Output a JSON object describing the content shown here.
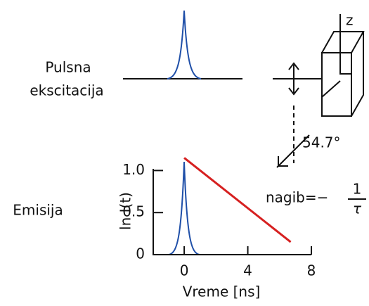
{
  "excitation": {
    "label_lines": [
      "Pulsna",
      "ekscitacija"
    ]
  },
  "emission": {
    "label": "Emisija"
  },
  "polarizer": {
    "axis_label": "z",
    "angle_label": "54.7°"
  },
  "decay_plot": {
    "ylabel": "ln I(t)",
    "xlabel": "Vreme [ns]",
    "xlim": [
      -1.95,
      8
    ],
    "ylim": [
      0,
      1.02
    ],
    "xticks": [
      0,
      4,
      8
    ],
    "yticks": [
      0,
      0.5,
      {
        "value": 1,
        "label": "1.0"
      }
    ],
    "decay": {
      "color": "#d62020",
      "x": [
        0,
        6.7
      ],
      "y": [
        1.15,
        0.15
      ]
    },
    "slope": {
      "prefix": "nagib=−",
      "numerator": "1",
      "denominator": "τ"
    }
  }
}
